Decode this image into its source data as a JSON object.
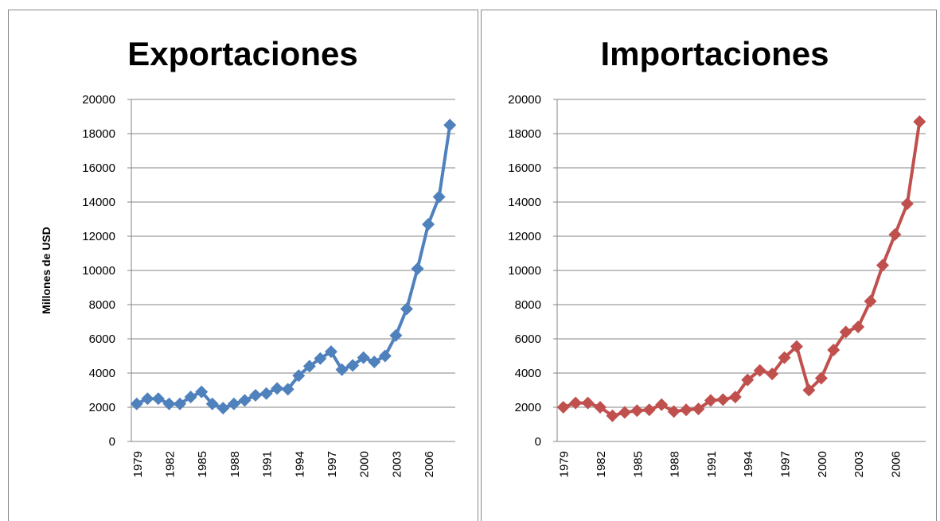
{
  "chart_data": [
    {
      "type": "line",
      "title": "Exportaciones",
      "y_label": "Millones de USD",
      "categories": [
        "1979",
        null,
        null,
        "1982",
        null,
        null,
        "1985",
        null,
        null,
        "1988",
        null,
        null,
        "1991",
        null,
        null,
        "1994",
        null,
        null,
        "1997",
        null,
        null,
        "2000",
        null,
        null,
        "2003",
        null,
        null,
        "2006",
        null,
        null
      ],
      "series": [
        {
          "name": "Exportaciones",
          "color": "#4f81bd",
          "values": [
            2200,
            2500,
            2500,
            2200,
            2200,
            2600,
            2900,
            2200,
            1950,
            2200,
            2400,
            2700,
            2800,
            3100,
            3050,
            3850,
            4400,
            4850,
            5250,
            4200,
            4450,
            4900,
            4650,
            5000,
            6200,
            7750,
            10100,
            12700,
            14300,
            18500
          ]
        }
      ],
      "ylim": [
        0,
        20000
      ],
      "yticks": [
        0,
        2000,
        4000,
        6000,
        8000,
        10000,
        12000,
        14000,
        16000,
        18000,
        20000
      ],
      "grid": true
    },
    {
      "type": "line",
      "title": "Importaciones",
      "categories": [
        "1979",
        null,
        null,
        "1982",
        null,
        null,
        "1985",
        null,
        null,
        "1988",
        null,
        null,
        "1991",
        null,
        null,
        "1994",
        null,
        null,
        "1997",
        null,
        null,
        "2000",
        null,
        null,
        "2003",
        null,
        null,
        "2006",
        null,
        null
      ],
      "series": [
        {
          "name": "Importaciones",
          "color": "#c0504d",
          "values": [
            2000,
            2250,
            2250,
            2000,
            1500,
            1700,
            1800,
            1850,
            2150,
            1750,
            1850,
            1900,
            2400,
            2450,
            2600,
            3600,
            4150,
            3950,
            4900,
            5550,
            3000,
            3700,
            5350,
            6400,
            6700,
            8200,
            10300,
            12100,
            13900,
            18700
          ]
        }
      ],
      "ylim": [
        0,
        20000
      ],
      "yticks": [
        0,
        2000,
        4000,
        6000,
        8000,
        10000,
        12000,
        14000,
        16000,
        18000,
        20000
      ],
      "grid": true
    }
  ]
}
